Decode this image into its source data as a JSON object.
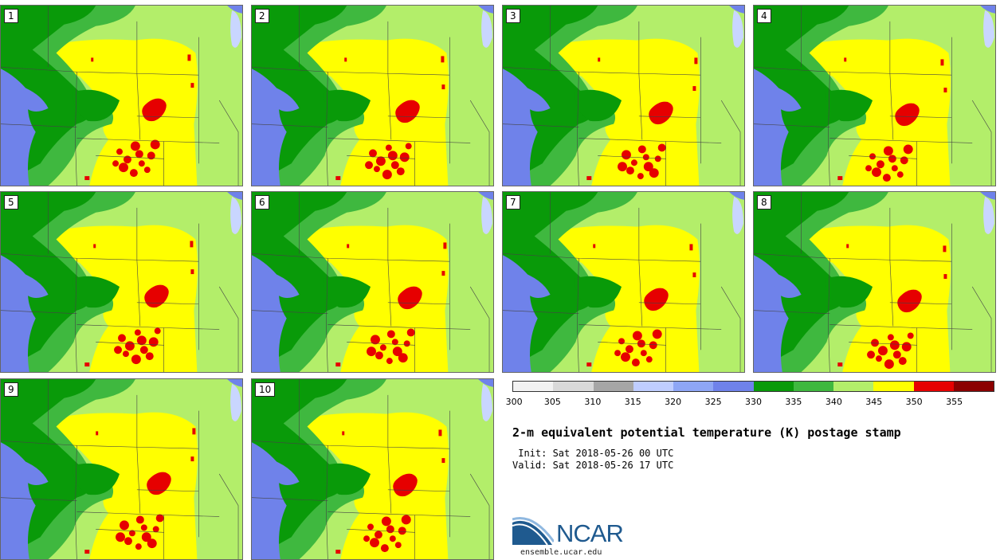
{
  "title": "2-m equivalent potential temperature (K) postage stamp",
  "init": " Init: Sat 2018-05-26 00 UTC",
  "valid": "Valid: Sat 2018-05-26 17 UTC",
  "logo_text": "NCAR",
  "url": "ensemble.ucar.edu",
  "members": [
    "1",
    "2",
    "3",
    "4",
    "5",
    "6",
    "7",
    "8",
    "9",
    "10"
  ],
  "colorbar": {
    "ticks": [
      "300",
      "305",
      "310",
      "315",
      "320",
      "325",
      "330",
      "335",
      "340",
      "345",
      "350",
      "355"
    ],
    "colors": [
      "#f2f2f2",
      "#d9d9d9",
      "#a6a6a6",
      "#bfcdff",
      "#8ea6f5",
      "#6f82ea",
      "#099a09",
      "#3fb83f",
      "#b3ee6a",
      "#ffff00",
      "#e60000",
      "#8b0000"
    ]
  },
  "map_colors": {
    "water": "#6f82ea",
    "dark_green": "#099a09",
    "mid_green": "#3fb83f",
    "light_green": "#b3ee6a",
    "yellow": "#ffff00",
    "red": "#e60000",
    "lake": "#c9d6ff"
  }
}
